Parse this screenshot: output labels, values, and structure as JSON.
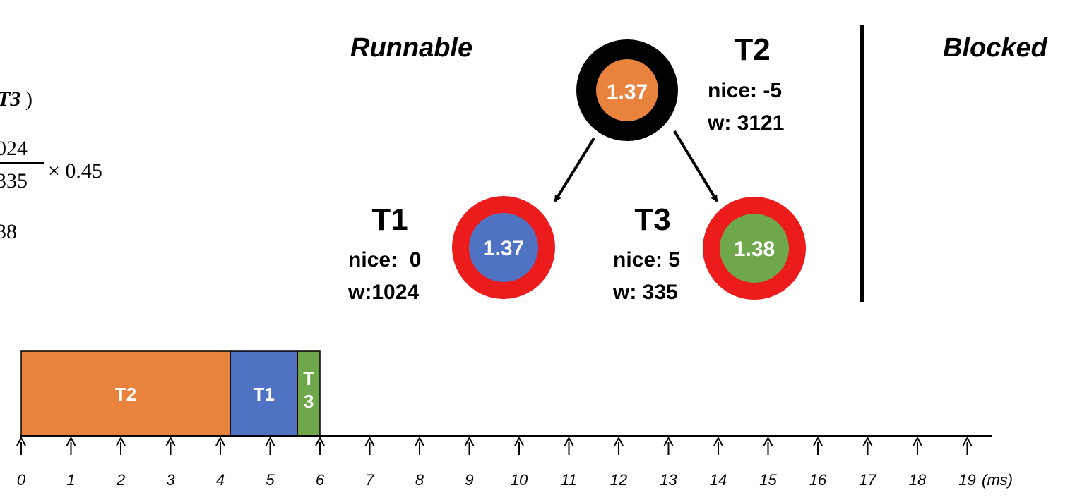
{
  "formula": {
    "line1_tail": "T3",
    "line1_close": ")",
    "numerator": "024",
    "denominator": "335",
    "multiplier": "× 0.45",
    "result": "38"
  },
  "sections": {
    "runnable_label": "Runnable",
    "blocked_label": "Blocked"
  },
  "tree": {
    "root": {
      "name": "T2",
      "vruntime": "1.37",
      "nice": "nice: -5",
      "weight": "w: 3121",
      "fill": "#E8823C",
      "ring": "#000000"
    },
    "left": {
      "name": "T1",
      "vruntime": "1.37",
      "nice": "nice:  0",
      "weight": "w:1024",
      "fill": "#4F72C3",
      "ring": "#ED1C1C"
    },
    "right": {
      "name": "T3",
      "vruntime": "1.38",
      "nice": "nice: 5",
      "weight": "w: 335",
      "fill": "#6FA84B",
      "ring": "#ED1C1C"
    }
  },
  "timeline": {
    "unit": "(ms)",
    "ticks": [
      "0",
      "1",
      "2",
      "3",
      "4",
      "5",
      "6",
      "7",
      "8",
      "9",
      "10",
      "11",
      "12",
      "13",
      "14",
      "15",
      "16",
      "17",
      "18",
      "19"
    ],
    "blocks": [
      {
        "label": "T2",
        "start": 0,
        "end": 4.2,
        "color": "#E8823C"
      },
      {
        "label": "T1",
        "start": 4.2,
        "end": 5.55,
        "color": "#4F72C3"
      },
      {
        "label": "T\n3",
        "start": 5.55,
        "end": 6.0,
        "color": "#6FA84B"
      }
    ]
  }
}
